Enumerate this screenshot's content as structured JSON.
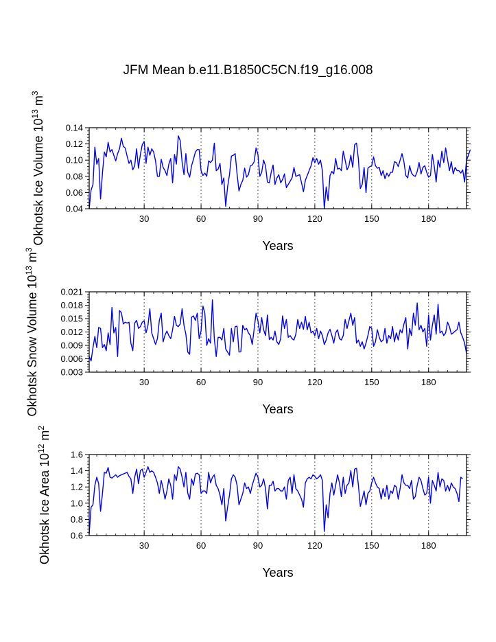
{
  "page": {
    "title": "JFM Mean b.e11.B1850C5CN.f19_g16.008"
  },
  "series_color": "#0000ff",
  "chart_data": [
    {
      "type": "line",
      "ylabel_main": "Okhotsk Ice Volume 10",
      "ylabel_sup": "13",
      "ylabel_unit": "m",
      "ylabel_unit_sup": "3",
      "xlabel": "Years",
      "xlim": [
        1,
        200
      ],
      "ylim": [
        0.04,
        0.14
      ],
      "yticks": [
        "0.04",
        "0.06",
        "0.08",
        "0.10",
        "0.12",
        "0.14"
      ],
      "xticks": [
        "30",
        "60",
        "90",
        "120",
        "150",
        "180"
      ],
      "grid_x": true,
      "values": [
        0.04,
        0.063,
        0.07,
        0.116,
        0.095,
        0.102,
        0.052,
        0.084,
        0.11,
        0.104,
        0.122,
        0.11,
        0.113,
        0.106,
        0.099,
        0.108,
        0.114,
        0.127,
        0.117,
        0.115,
        0.105,
        0.096,
        0.1,
        0.088,
        0.093,
        0.114,
        0.09,
        0.107,
        0.119,
        0.123,
        0.096,
        0.116,
        0.106,
        0.114,
        0.11,
        0.099,
        0.08,
        0.08,
        0.101,
        0.091,
        0.087,
        0.081,
        0.095,
        0.102,
        0.072,
        0.107,
        0.095,
        0.13,
        0.124,
        0.098,
        0.082,
        0.108,
        0.085,
        0.079,
        0.093,
        0.101,
        0.11,
        0.113,
        0.113,
        0.087,
        0.081,
        0.084,
        0.08,
        0.099,
        0.097,
        0.1,
        0.121,
        0.087,
        0.089,
        0.096,
        0.07,
        0.078,
        0.043,
        0.067,
        0.082,
        0.105,
        0.106,
        0.108,
        0.083,
        0.062,
        0.07,
        0.075,
        0.09,
        0.079,
        0.082,
        0.093,
        0.094,
        0.098,
        0.115,
        0.107,
        0.08,
        0.085,
        0.1,
        0.093,
        0.073,
        0.072,
        0.085,
        0.094,
        0.07,
        0.078,
        0.082,
        0.072,
        0.076,
        0.083,
        0.066,
        0.07,
        0.074,
        0.078,
        0.091,
        0.08,
        0.081,
        0.082,
        0.072,
        0.061,
        0.075,
        0.081,
        0.087,
        0.093,
        0.103,
        0.097,
        0.102,
        0.095,
        0.1,
        0.087,
        0.04,
        0.067,
        0.05,
        0.081,
        0.086,
        0.083,
        0.102,
        0.089,
        0.09,
        0.087,
        0.111,
        0.1,
        0.088,
        0.093,
        0.106,
        0.091,
        0.119,
        0.121,
        0.101,
        0.065,
        0.07,
        0.091,
        0.06,
        0.09,
        0.092,
        0.093,
        0.104,
        0.093,
        0.09,
        0.091,
        0.081,
        0.087,
        0.077,
        0.084,
        0.08,
        0.085,
        0.085,
        0.098,
        0.097,
        0.092,
        0.1,
        0.108,
        0.098,
        0.081,
        0.078,
        0.093,
        0.084,
        0.081,
        0.08,
        0.086,
        0.097,
        0.083,
        0.091,
        0.093,
        0.085,
        0.079,
        0.081,
        0.107,
        0.092,
        0.073,
        0.1,
        0.091,
        0.111,
        0.097,
        0.115,
        0.101,
        0.087,
        0.098,
        0.083,
        0.091,
        0.087,
        0.087,
        0.084,
        0.088,
        0.073,
        0.1,
        0.106,
        0.113
      ]
    },
    {
      "type": "line",
      "ylabel_main": "Okhotsk Snow Volume 10",
      "ylabel_sup": "13",
      "ylabel_unit": "m",
      "ylabel_unit_sup": "3",
      "xlabel": "Years",
      "xlim": [
        1,
        200
      ],
      "ylim": [
        0.003,
        0.021
      ],
      "yticks": [
        "0.003",
        "0.006",
        "0.009",
        "0.012",
        "0.015",
        "0.018",
        "0.021"
      ],
      "xticks": [
        "30",
        "60",
        "90",
        "120",
        "150",
        "180"
      ],
      "grid_x": true,
      "values": [
        0.0065,
        0.0055,
        0.0085,
        0.011,
        0.0085,
        0.013,
        0.0128,
        0.0085,
        0.0092,
        0.0078,
        0.0118,
        0.0092,
        0.0175,
        0.0118,
        0.013,
        0.0065,
        0.0168,
        0.0163,
        0.0138,
        0.0142,
        0.014,
        0.0142,
        0.0095,
        0.0078,
        0.014,
        0.0146,
        0.0128,
        0.0132,
        0.0142,
        0.0145,
        0.0118,
        0.0135,
        0.0172,
        0.0118,
        0.0105,
        0.0092,
        0.0105,
        0.0146,
        0.0162,
        0.0098,
        0.0113,
        0.0122,
        0.0112,
        0.0105,
        0.0125,
        0.0155,
        0.0135,
        0.0132,
        0.0138,
        0.0172,
        0.0135,
        0.0115,
        0.0075,
        0.007,
        0.0153,
        0.0156,
        0.0146,
        0.0162,
        0.0105,
        0.0122,
        0.0178,
        0.0162,
        0.009,
        0.0105,
        0.0095,
        0.0192,
        0.0105,
        0.0065,
        0.0108,
        0.0108,
        0.0102,
        0.0128,
        0.0082,
        0.0075,
        0.0068,
        0.0128,
        0.0098,
        0.0132,
        0.0133,
        0.0075,
        0.0076,
        0.0135,
        0.0125,
        0.0128,
        0.0118,
        0.0112,
        0.0092,
        0.0126,
        0.0162,
        0.0145,
        0.0118,
        0.0152,
        0.0125,
        0.0112,
        0.0158,
        0.0103,
        0.0108,
        0.0102,
        0.0122,
        0.0098,
        0.0092,
        0.0105,
        0.0156,
        0.0128,
        0.0148,
        0.0108,
        0.0112,
        0.0105,
        0.0102,
        0.0115,
        0.0148,
        0.0128,
        0.0142,
        0.0126,
        0.0155,
        0.0125,
        0.0142,
        0.0118,
        0.0122,
        0.0112,
        0.0128,
        0.0105,
        0.0122,
        0.0112,
        0.0092,
        0.0102,
        0.0118,
        0.0126,
        0.0112,
        0.0095,
        0.0118,
        0.0125,
        0.0105,
        0.0102,
        0.0112,
        0.0148,
        0.0128,
        0.0145,
        0.0162,
        0.0135,
        0.0152,
        0.0095,
        0.0102,
        0.0088,
        0.0098,
        0.0082,
        0.0095,
        0.0112,
        0.0132,
        0.0128,
        0.0088,
        0.0098,
        0.0125,
        0.0108,
        0.0098,
        0.0102,
        0.0128,
        0.0095,
        0.0112,
        0.0105,
        0.0132,
        0.0098,
        0.0118,
        0.0102,
        0.0125,
        0.0118,
        0.0138,
        0.0152,
        0.0082,
        0.0128,
        0.0112,
        0.0162,
        0.0135,
        0.0185,
        0.0125,
        0.0135,
        0.012,
        0.0128,
        0.0088,
        0.0158,
        0.0102,
        0.0135,
        0.0158,
        0.0115,
        0.0182,
        0.0118,
        0.0122,
        0.0112,
        0.0118,
        0.0142,
        0.0132,
        0.0115,
        0.0118,
        0.0122,
        0.0125,
        0.0142,
        0.0118,
        0.0108,
        0.0095,
        0.0072
      ]
    },
    {
      "type": "line",
      "ylabel_main": "Okhotsk Ice Area 10",
      "ylabel_sup": "12",
      "ylabel_unit": "m",
      "ylabel_unit_sup": "2",
      "xlabel": "Years",
      "xlim": [
        1,
        200
      ],
      "ylim": [
        0.6,
        1.6
      ],
      "yticks": [
        "0.6",
        "0.8",
        "1.0",
        "1.2",
        "1.4",
        "1.6"
      ],
      "xticks": [
        "30",
        "60",
        "90",
        "120",
        "150",
        "180"
      ],
      "grid_x": true,
      "values": [
        0.62,
        0.95,
        0.98,
        1.22,
        1.32,
        1.24,
        0.9,
        1.12,
        1.38,
        1.37,
        1.44,
        1.32,
        1.31,
        1.33,
        1.35,
        1.32,
        1.34,
        1.35,
        1.36,
        1.37,
        1.38,
        1.33,
        1.3,
        1.12,
        1.32,
        1.42,
        1.24,
        1.4,
        1.42,
        1.32,
        1.38,
        1.45,
        1.38,
        1.4,
        1.38,
        1.32,
        1.25,
        1.12,
        1.28,
        1.18,
        1.05,
        1.15,
        1.3,
        1.22,
        1.05,
        1.35,
        1.28,
        1.45,
        1.42,
        1.32,
        1.2,
        1.38,
        1.12,
        1.05,
        1.3,
        1.22,
        1.36,
        1.37,
        1.35,
        1.12,
        1.15,
        1.15,
        1.12,
        1.38,
        1.25,
        1.32,
        1.35,
        1.22,
        1.18,
        1.1,
        0.98,
        1.18,
        0.78,
        0.95,
        1.1,
        1.3,
        1.35,
        1.32,
        1.22,
        0.98,
        1.05,
        1.12,
        1.25,
        1.18,
        1.2,
        1.12,
        1.22,
        1.3,
        1.37,
        1.32,
        1.2,
        1.22,
        1.3,
        1.18,
        0.93,
        1.22,
        1.22,
        1.27,
        1.15,
        1.18,
        1.18,
        1.15,
        1.15,
        1.2,
        1.05,
        1.28,
        1.32,
        1.12,
        1.35,
        1.18,
        1.15,
        1.1,
        1.05,
        0.95,
        1.25,
        1.3,
        1.32,
        1.3,
        1.35,
        1.33,
        1.3,
        1.32,
        1.35,
        1.28,
        0.65,
        0.98,
        0.82,
        1.12,
        1.25,
        1.1,
        1.22,
        1.35,
        1.25,
        1.08,
        1.32,
        1.12,
        1.22,
        1.25,
        1.4,
        1.2,
        1.42,
        1.43,
        1.22,
        0.96,
        1.05,
        1.15,
        0.98,
        1.12,
        1.15,
        1.25,
        1.32,
        1.25,
        1.2,
        1.18,
        1.05,
        1.18,
        1.08,
        1.22,
        1.05,
        1.15,
        1.12,
        1.22,
        1.2,
        1.05,
        1.18,
        1.35,
        1.25,
        1.22,
        1.22,
        1.18,
        1.28,
        1.05,
        1.08,
        1.22,
        1.32,
        1.28,
        1.18,
        1.1,
        1.12,
        1.32,
        1.0,
        1.28,
        1.22,
        1.15,
        1.38,
        1.2,
        1.3,
        1.28,
        1.15,
        1.22,
        1.15,
        1.25,
        1.2,
        1.18,
        1.12,
        1.02,
        1.32,
        1.3
      ]
    }
  ]
}
